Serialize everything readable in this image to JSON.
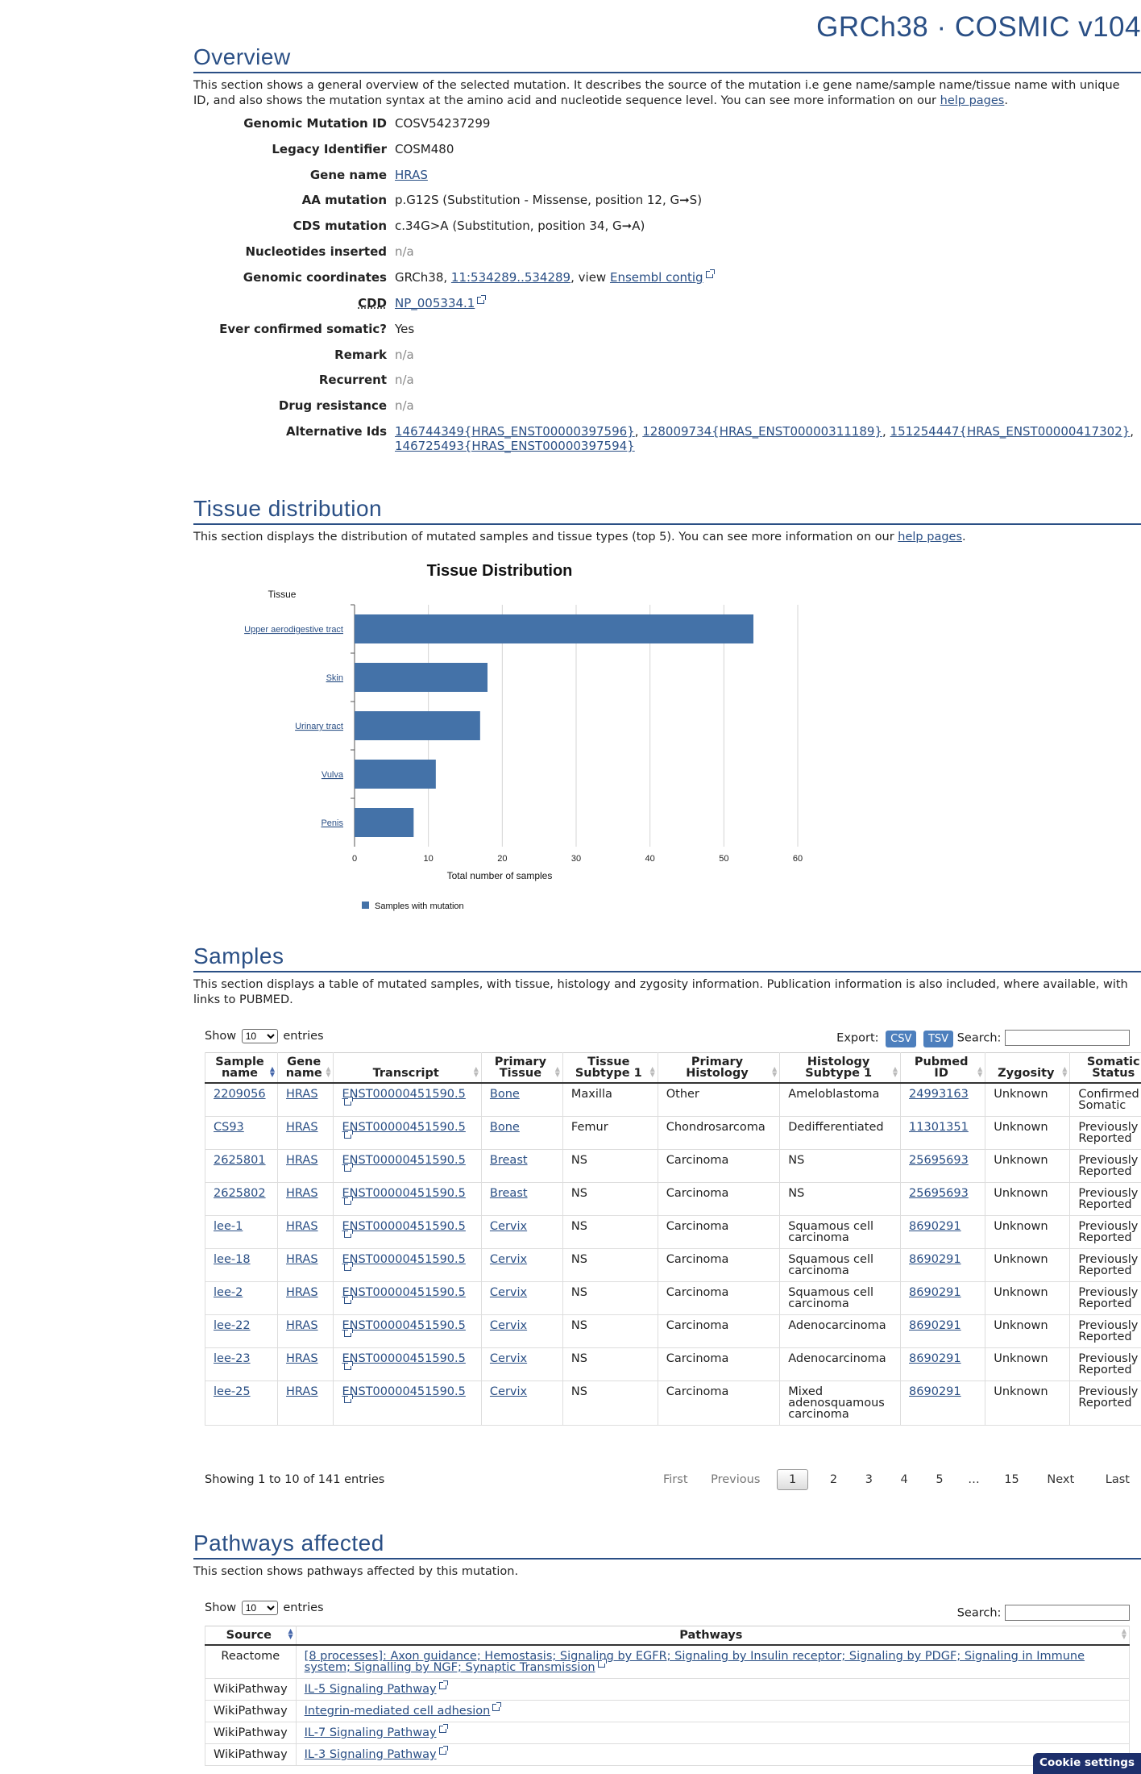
{
  "banner": "GRCh38 · COSMIC v104",
  "overview": {
    "title": "Overview",
    "desc_pre": "This section shows a general overview of the selected mutation. It describes the source of the mutation i.e gene name/sample name/tissue name with unique ID, and also shows the mutation syntax at the amino acid and nucleotide sequence level. You can see more information on our ",
    "desc_link": "help pages",
    "desc_post": ".",
    "rows": {
      "genomic_id": {
        "label": "Genomic Mutation ID",
        "value": "COSV54237299"
      },
      "legacy": {
        "label": "Legacy Identifier",
        "value": "COSM480"
      },
      "gene": {
        "label": "Gene name",
        "value": "HRAS"
      },
      "aa": {
        "label": "AA mutation",
        "value": "p.G12S (Substitution - Missense, position 12, G➞S)"
      },
      "cds": {
        "label": "CDS mutation",
        "value": "c.34G>A (Substitution, position 34, G➞A)"
      },
      "nuc": {
        "label": "Nucleotides inserted",
        "value": "n/a"
      },
      "coords": {
        "label": "Genomic coordinates",
        "v1": "GRCh38, ",
        "link1": "11:534289..534289",
        "v2": ", view ",
        "link2": "Ensembl contig"
      },
      "cdd": {
        "label": "CDD",
        "link": "NP_005334.1"
      },
      "somatic": {
        "label": "Ever confirmed somatic?",
        "value": "Yes"
      },
      "remark": {
        "label": "Remark",
        "value": "n/a"
      },
      "recurrent": {
        "label": "Recurrent",
        "value": "n/a"
      },
      "drug": {
        "label": "Drug resistance",
        "value": "n/a"
      },
      "alt": {
        "label": "Alternative Ids",
        "l1": "146744349{HRAS_ENST00000397596}",
        "l2": "128009734{HRAS_ENST00000311189}",
        "l3": "151254447{HRAS_ENST00000417302}",
        "l4": "146725493{HRAS_ENST00000397594}"
      }
    }
  },
  "tissue": {
    "title": "Tissue distribution",
    "desc_pre": "This section displays the distribution of mutated samples and tissue types (top 5). You can see more information on our ",
    "desc_link": "help pages",
    "desc_post": "."
  },
  "chart_data": {
    "type": "bar",
    "orientation": "horizontal",
    "title": "Tissue Distribution",
    "ylabel": "Tissue",
    "xlabel": "Total number of samples",
    "categories": [
      "Upper aerodigestive tract",
      "Skin",
      "Urinary tract",
      "Vulva",
      "Penis"
    ],
    "series": [
      {
        "name": "Samples with mutation",
        "values": [
          54,
          18,
          17,
          11,
          8
        ]
      }
    ],
    "xlim": [
      0,
      60
    ],
    "xticks": [
      0,
      10,
      20,
      30,
      40,
      50,
      60
    ],
    "grid": true,
    "legend": "bottom-left",
    "color": "#4472a8"
  },
  "samples": {
    "title": "Samples",
    "desc": "This section displays a table of mutated samples, with tissue, histology and zygosity information. Publication information is also included, where available, with links to PUBMED.",
    "show": "Show",
    "show_value": "10",
    "entries": "entries",
    "export": "Export:",
    "csv": "CSV",
    "tsv": "TSV",
    "search": "Search:",
    "headers": [
      "Sample name",
      "Gene name",
      "Transcript",
      "Primary Tissue",
      "Tissue Subtype 1",
      "Primary Histology",
      "Histology Subtype 1",
      "Pubmed ID",
      "Zygosity",
      "Somatic Status"
    ],
    "rows": [
      [
        "2209056",
        "HRAS",
        "ENST00000451590.5",
        "Bone",
        "Maxilla",
        "Other",
        "Ameloblastoma",
        "24993163",
        "Unknown",
        "Confirmed Somatic"
      ],
      [
        "CS93",
        "HRAS",
        "ENST00000451590.5",
        "Bone",
        "Femur",
        "Chondrosarcoma",
        "Dedifferentiated",
        "11301351",
        "Unknown",
        "Previously Reported"
      ],
      [
        "2625801",
        "HRAS",
        "ENST00000451590.5",
        "Breast",
        "NS",
        "Carcinoma",
        "NS",
        "25695693",
        "Unknown",
        "Previously Reported"
      ],
      [
        "2625802",
        "HRAS",
        "ENST00000451590.5",
        "Breast",
        "NS",
        "Carcinoma",
        "NS",
        "25695693",
        "Unknown",
        "Previously Reported"
      ],
      [
        "lee-1",
        "HRAS",
        "ENST00000451590.5",
        "Cervix",
        "NS",
        "Carcinoma",
        "Squamous cell carcinoma",
        "8690291",
        "Unknown",
        "Previously Reported"
      ],
      [
        "lee-18",
        "HRAS",
        "ENST00000451590.5",
        "Cervix",
        "NS",
        "Carcinoma",
        "Squamous cell carcinoma",
        "8690291",
        "Unknown",
        "Previously Reported"
      ],
      [
        "lee-2",
        "HRAS",
        "ENST00000451590.5",
        "Cervix",
        "NS",
        "Carcinoma",
        "Squamous cell carcinoma",
        "8690291",
        "Unknown",
        "Previously Reported"
      ],
      [
        "lee-22",
        "HRAS",
        "ENST00000451590.5",
        "Cervix",
        "NS",
        "Carcinoma",
        "Adenocarcinoma",
        "8690291",
        "Unknown",
        "Previously Reported"
      ],
      [
        "lee-23",
        "HRAS",
        "ENST00000451590.5",
        "Cervix",
        "NS",
        "Carcinoma",
        "Adenocarcinoma",
        "8690291",
        "Unknown",
        "Previously Reported"
      ],
      [
        "lee-25",
        "HRAS",
        "ENST00000451590.5",
        "Cervix",
        "NS",
        "Carcinoma",
        "Mixed adenosquamous carcinoma",
        "8690291",
        "Unknown",
        "Previously Reported"
      ]
    ],
    "info": "Showing 1 to 10 of 141 entries",
    "pager": {
      "first": "First",
      "prev": "Previous",
      "p1": "1",
      "p2": "2",
      "p3": "3",
      "p4": "4",
      "p5": "5",
      "ellipsis": "…",
      "p15": "15",
      "next": "Next",
      "last": "Last"
    }
  },
  "pathways": {
    "title": "Pathways affected",
    "desc": "This section shows pathways affected by this mutation.",
    "show": "Show",
    "show_value": "10",
    "entries": "entries",
    "search": "Search:",
    "headers": [
      "Source",
      "Pathways"
    ],
    "rows": [
      [
        "Reactome",
        "[8 processes]: Axon guidance; Hemostasis; Signaling by EGFR; Signaling by Insulin receptor; Signaling by PDGF; Signaling in Immune system; Signalling by NGF; Synaptic Transmission"
      ],
      [
        "WikiPathway",
        "IL-5 Signaling Pathway"
      ],
      [
        "WikiPathway",
        "Integrin-mediated cell adhesion"
      ],
      [
        "WikiPathway",
        "IL-7 Signaling Pathway"
      ],
      [
        "WikiPathway",
        "IL-3 Signaling Pathway"
      ]
    ]
  },
  "cookie": "Cookie settings"
}
